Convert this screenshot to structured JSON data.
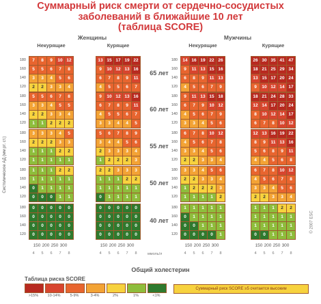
{
  "title_lines": [
    "Суммарный риск смерти от сердечно-сосудистых",
    "заболеваний в ближайшие 10 лет",
    "(таблица SCORE)"
  ],
  "groups": {
    "women": "Женщины",
    "men": "Мужчины"
  },
  "subgroups": {
    "nonsmoking": "Некурящие",
    "smoking": "Курящие"
  },
  "bp_labels": [
    "180",
    "160",
    "140",
    "120"
  ],
  "y_axis_label": "Систолическое АД (мм рт. ст.)",
  "x_ticks_mg": [
    "150",
    "200",
    "250",
    "300"
  ],
  "x_ticks_mmol": [
    "4",
    "5",
    "6",
    "7",
    "8"
  ],
  "x_unit": "ммоль/л",
  "x_axis_title": "Общий холестерин",
  "legend_title": "Таблица риска SCORE",
  "legend_labels": [
    ">15%",
    "10-14%",
    "5-9%",
    "3-4%",
    "2%",
    "1%",
    "<1%"
  ],
  "legend_colors": [
    "#b82a20",
    "#d8452e",
    "#e8652f",
    "#f3a335",
    "#f7d23e",
    "#8ebd3c",
    "#2f7a2e"
  ],
  "legend_note": "Суммарный риск SCORE ≥5 считается высоким",
  "copyright": "© 2007 ESC",
  "chart_data": {
    "type": "heatmap",
    "title": "Суммарный риск смерти от сердечно-сосудистых заболеваний в ближайшие 10 лет (таблица SCORE)",
    "xlabel": "Общий холестерин",
    "ylabel": "Систолическое АД (мм рт. ст.)",
    "columns": [
      "Женщины Некурящие",
      "Женщины Курящие",
      "Мужчины Некурящие",
      "Мужчины Курящие"
    ],
    "rows": [
      {
        "age": "65 лет",
        "panels": [
          [
            [
              7,
              8,
              9,
              10,
              12
            ],
            [
              5,
              5,
              6,
              7,
              8
            ],
            [
              3,
              3,
              4,
              5,
              6
            ],
            [
              2,
              2,
              3,
              3,
              4
            ]
          ],
          [
            [
              13,
              15,
              17,
              19,
              22
            ],
            [
              9,
              10,
              12,
              13,
              16
            ],
            [
              6,
              7,
              8,
              9,
              11
            ],
            [
              4,
              5,
              5,
              6,
              7
            ]
          ],
          [
            [
              14,
              16,
              19,
              22,
              26
            ],
            [
              9,
              11,
              13,
              15,
              16
            ],
            [
              6,
              8,
              9,
              11,
              13
            ],
            [
              4,
              5,
              6,
              7,
              9
            ]
          ],
          [
            [
              26,
              30,
              35,
              41,
              47
            ],
            [
              18,
              21,
              25,
              29,
              34
            ],
            [
              13,
              15,
              17,
              20,
              24
            ],
            [
              9,
              10,
              12,
              14,
              17
            ]
          ]
        ]
      },
      {
        "age": "60 лет",
        "panels": [
          [
            [
              5,
              5,
              6,
              7,
              8
            ],
            [
              3,
              3,
              4,
              5,
              5
            ],
            [
              2,
              2,
              3,
              3,
              4
            ],
            [
              1,
              1,
              2,
              2,
              2
            ]
          ],
          [
            [
              9,
              10,
              12,
              13,
              16
            ],
            [
              6,
              7,
              8,
              9,
              11
            ],
            [
              4,
              5,
              5,
              6,
              7
            ],
            [
              3,
              3,
              4,
              4,
              5
            ]
          ],
          [
            [
              9,
              11,
              13,
              15,
              18
            ],
            [
              6,
              7,
              9,
              10,
              12
            ],
            [
              4,
              5,
              6,
              7,
              9
            ],
            [
              3,
              3,
              4,
              5,
              6
            ]
          ],
          [
            [
              18,
              21,
              24,
              28,
              33
            ],
            [
              12,
              14,
              17,
              20,
              24
            ],
            [
              8,
              10,
              12,
              14,
              17
            ],
            [
              6,
              7,
              8,
              10,
              12
            ]
          ]
        ]
      },
      {
        "age": "55 лет",
        "panels": [
          [
            [
              3,
              3,
              3,
              4,
              5
            ],
            [
              2,
              2,
              2,
              3,
              3
            ],
            [
              1,
              1,
              1,
              2,
              2
            ],
            [
              1,
              1,
              1,
              1,
              1
            ]
          ],
          [
            [
              5,
              6,
              7,
              8,
              9
            ],
            [
              3,
              4,
              4,
              5,
              6
            ],
            [
              2,
              3,
              3,
              3,
              4
            ],
            [
              1,
              2,
              2,
              2,
              3
            ]
          ],
          [
            [
              6,
              7,
              8,
              10,
              12
            ],
            [
              4,
              5,
              6,
              7,
              8
            ],
            [
              3,
              3,
              4,
              5,
              6
            ],
            [
              2,
              2,
              3,
              3,
              4
            ]
          ],
          [
            [
              12,
              13,
              16,
              19,
              22
            ],
            [
              8,
              9,
              11,
              13,
              16
            ],
            [
              5,
              6,
              8,
              9,
              11
            ],
            [
              4,
              4,
              5,
              6,
              8
            ]
          ]
        ]
      },
      {
        "age": "50 лет",
        "panels": [
          [
            [
              1,
              1,
              1,
              2,
              2
            ],
            [
              1,
              1,
              1,
              1,
              1
            ],
            [
              0,
              1,
              1,
              1,
              1
            ],
            [
              0,
              0,
              0,
              1,
              1
            ]
          ],
          [
            [
              2,
              2,
              3,
              3,
              3
            ],
            [
              1,
              1,
              1,
              2,
              2
            ],
            [
              1,
              1,
              1,
              1,
              1
            ],
            [
              0,
              1,
              1,
              1,
              1
            ]
          ],
          [
            [
              3,
              3,
              4,
              5,
              6
            ],
            [
              2,
              2,
              3,
              3,
              4
            ],
            [
              1,
              2,
              2,
              2,
              3
            ],
            [
              1,
              1,
              1,
              1,
              2
            ]
          ],
          [
            [
              6,
              7,
              8,
              10,
              12
            ],
            [
              4,
              5,
              6,
              7,
              8
            ],
            [
              3,
              3,
              4,
              5,
              6
            ],
            [
              2,
              2,
              3,
              3,
              4
            ]
          ]
        ]
      },
      {
        "age": "40 лет",
        "panels": [
          [
            [
              0,
              0,
              0,
              0,
              0
            ],
            [
              0,
              0,
              0,
              0,
              0
            ],
            [
              0,
              0,
              0,
              0,
              0
            ],
            [
              0,
              0,
              0,
              0,
              0
            ]
          ],
          [
            [
              0,
              0,
              0,
              0,
              0
            ],
            [
              0,
              0,
              0,
              0,
              0
            ],
            [
              0,
              0,
              0,
              0,
              0
            ],
            [
              0,
              0,
              0,
              0,
              0
            ]
          ],
          [
            [
              1,
              1,
              1,
              1,
              1
            ],
            [
              0,
              1,
              1,
              1,
              1
            ],
            [
              0,
              0,
              1,
              1,
              1
            ],
            [
              0,
              0,
              0,
              0,
              1
            ]
          ],
          [
            [
              1,
              1,
              1,
              2,
              2
            ],
            [
              1,
              1,
              1,
              1,
              1
            ],
            [
              1,
              1,
              1,
              1,
              1
            ],
            [
              0,
              0,
              1,
              1,
              1
            ]
          ]
        ]
      }
    ]
  }
}
